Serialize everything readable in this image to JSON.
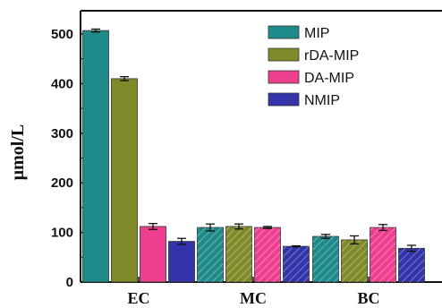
{
  "chart_data": {
    "type": "bar",
    "ylabel": "μmol/L",
    "ylim": [
      0,
      550
    ],
    "yticks": [
      0,
      100,
      200,
      300,
      400,
      500
    ],
    "categories": [
      "EC",
      "MC",
      "BC"
    ],
    "series": [
      {
        "name": "MIP",
        "values": [
          507,
          110,
          92
        ],
        "errors": [
          3,
          7,
          4
        ],
        "color": "#1f8a8a"
      },
      {
        "name": "rDA-MIP",
        "values": [
          410,
          112,
          85
        ],
        "errors": [
          4,
          5,
          8
        ],
        "color": "#808a2a"
      },
      {
        "name": "DA-MIP",
        "values": [
          112,
          110,
          110
        ],
        "errors": [
          6,
          2,
          6
        ],
        "color": "#ee3f8f"
      },
      {
        "name": "NMIP",
        "values": [
          82,
          72,
          68
        ],
        "errors": [
          6,
          1,
          6
        ],
        "color": "#3333aa"
      }
    ],
    "legend_position": "top-right",
    "grid": false
  }
}
